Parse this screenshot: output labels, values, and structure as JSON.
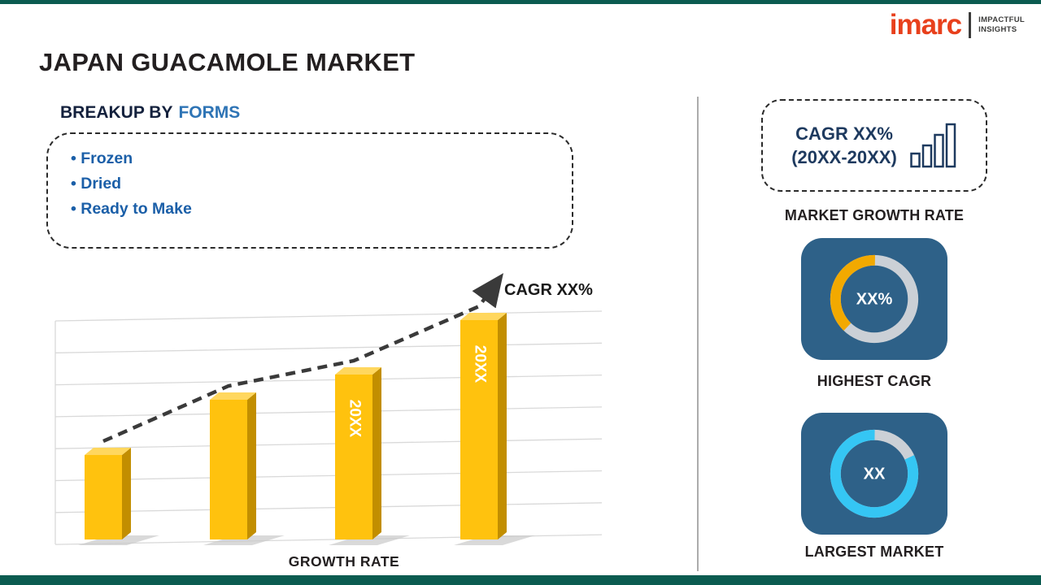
{
  "page": {
    "title": "JAPAN GUACAMOLE MARKET"
  },
  "logo": {
    "brand": "imarc",
    "tagline_line1": "IMPACTFUL",
    "tagline_line2": "INSIGHTS"
  },
  "breakup": {
    "heading_prefix": "BREAKUP BY",
    "heading_highlight": "FORMS",
    "items": [
      "Frozen",
      "Dried",
      "Ready to Make"
    ]
  },
  "chart_data": [
    {
      "type": "bar",
      "title": "GROWTH RATE",
      "categories": [
        "",
        "",
        "20XX",
        "20XX"
      ],
      "values": [
        1.0,
        1.65,
        1.95,
        2.6
      ],
      "bar_labels": [
        "",
        "",
        "20XX",
        "20XX"
      ],
      "trend_label": "CAGR XX%",
      "trend_style": "dashed-arrow-up",
      "xlabel": "GROWTH RATE",
      "ylabel": "",
      "grid": true,
      "bar_color": "#FFC20E",
      "bar_side_color": "#C28E00",
      "bar_top_color": "#FFD75E"
    },
    {
      "type": "pie",
      "title": "HIGHEST CAGR",
      "center_label": "XX%",
      "legend_position": "none",
      "slices": [
        {
          "name": "highlight",
          "value": 38,
          "color": "#F2A900"
        },
        {
          "name": "remainder",
          "value": 62,
          "color": "#CBD0D6"
        }
      ]
    },
    {
      "type": "pie",
      "title": "LARGEST MARKET",
      "center_label": "XX",
      "legend_position": "none",
      "slices": [
        {
          "name": "highlight",
          "value": 82,
          "color": "#35C6F4"
        },
        {
          "name": "remainder",
          "value": 18,
          "color": "#CBD0D6"
        }
      ]
    }
  ],
  "right_panel": {
    "cagr_box": {
      "line1": "CAGR XX%",
      "line2": "(20XX-20XX)",
      "icon": "bar-chart-icon"
    },
    "market_growth_label": "MARKET GROWTH RATE"
  },
  "colors": {
    "accent_teal": "#0B5B50",
    "tile_blue": "#2E6188",
    "divider_gray": "#ACACAC",
    "heading_navy": "#14213D",
    "heading_blue": "#2E74B5",
    "bullet_blue": "#1B5FA8",
    "cagr_text_navy": "#1E3A5F",
    "logo_red": "#E8401C",
    "title_dark": "#231F20"
  }
}
